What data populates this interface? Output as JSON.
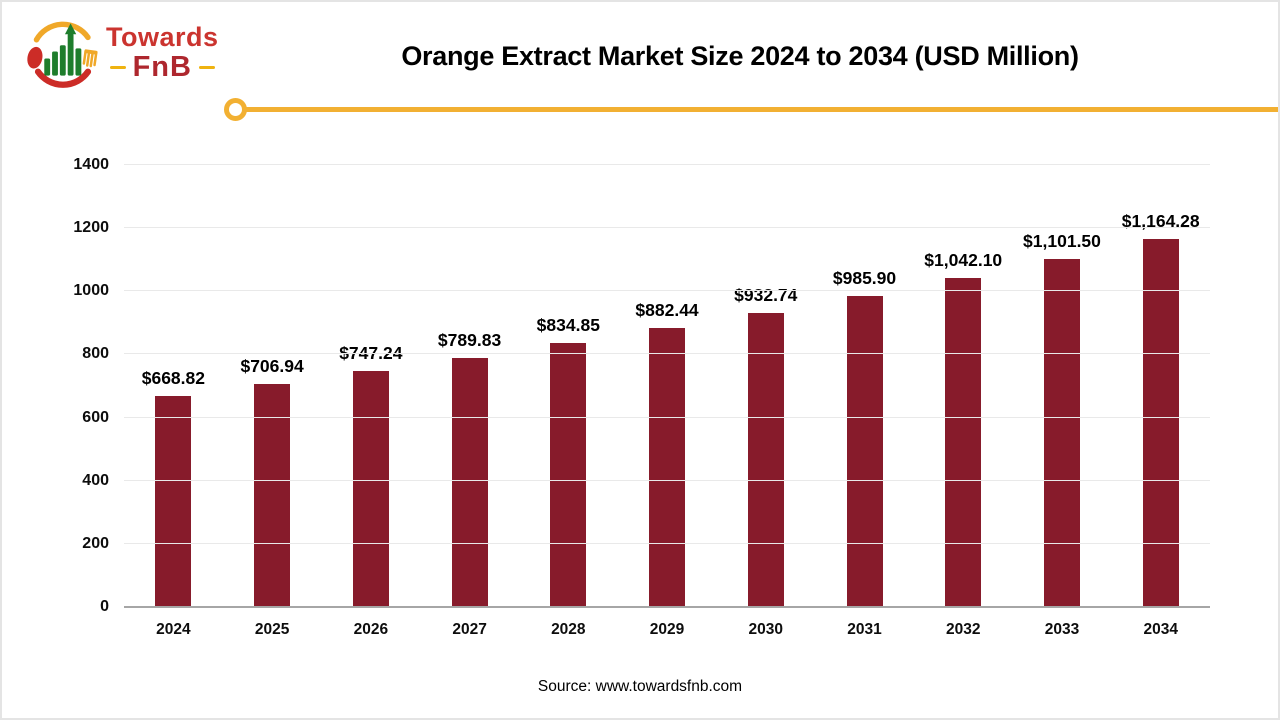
{
  "logo": {
    "line1": "Towards",
    "line2": "FnB",
    "line1_color": "#cb342f",
    "line2_color": "#ae272e",
    "dash_color": "#efb310"
  },
  "title": "Orange Extract Market Size 2024 to 2034 (USD Million)",
  "divider": {
    "color": "#f2b032"
  },
  "source": "Source: www.towardsfnb.com",
  "chart_data": {
    "type": "bar",
    "title": "Orange Extract Market Size 2024 to 2034 (USD Million)",
    "xlabel": "",
    "ylabel": "",
    "categories": [
      "2024",
      "2025",
      "2026",
      "2027",
      "2028",
      "2029",
      "2030",
      "2031",
      "2032",
      "2033",
      "2034"
    ],
    "values": [
      668.82,
      706.94,
      747.24,
      789.83,
      834.85,
      882.44,
      932.74,
      985.9,
      1042.1,
      1101.5,
      1164.28
    ],
    "value_labels": [
      "$668.82",
      "$706.94",
      "$747.24",
      "$789.83",
      "$834.85",
      "$882.44",
      "$932.74",
      "$985.90",
      "$1,042.10",
      "$1,101.50",
      "$1,164.28"
    ],
    "ylim": [
      0,
      1400
    ],
    "yticks": [
      0,
      200,
      400,
      600,
      800,
      1000,
      1200,
      1400
    ],
    "grid": true,
    "legend": false,
    "bar_color": "#871b2b",
    "gridline_color": "#e9e9e9",
    "axis_color": "#a6a6a6"
  }
}
